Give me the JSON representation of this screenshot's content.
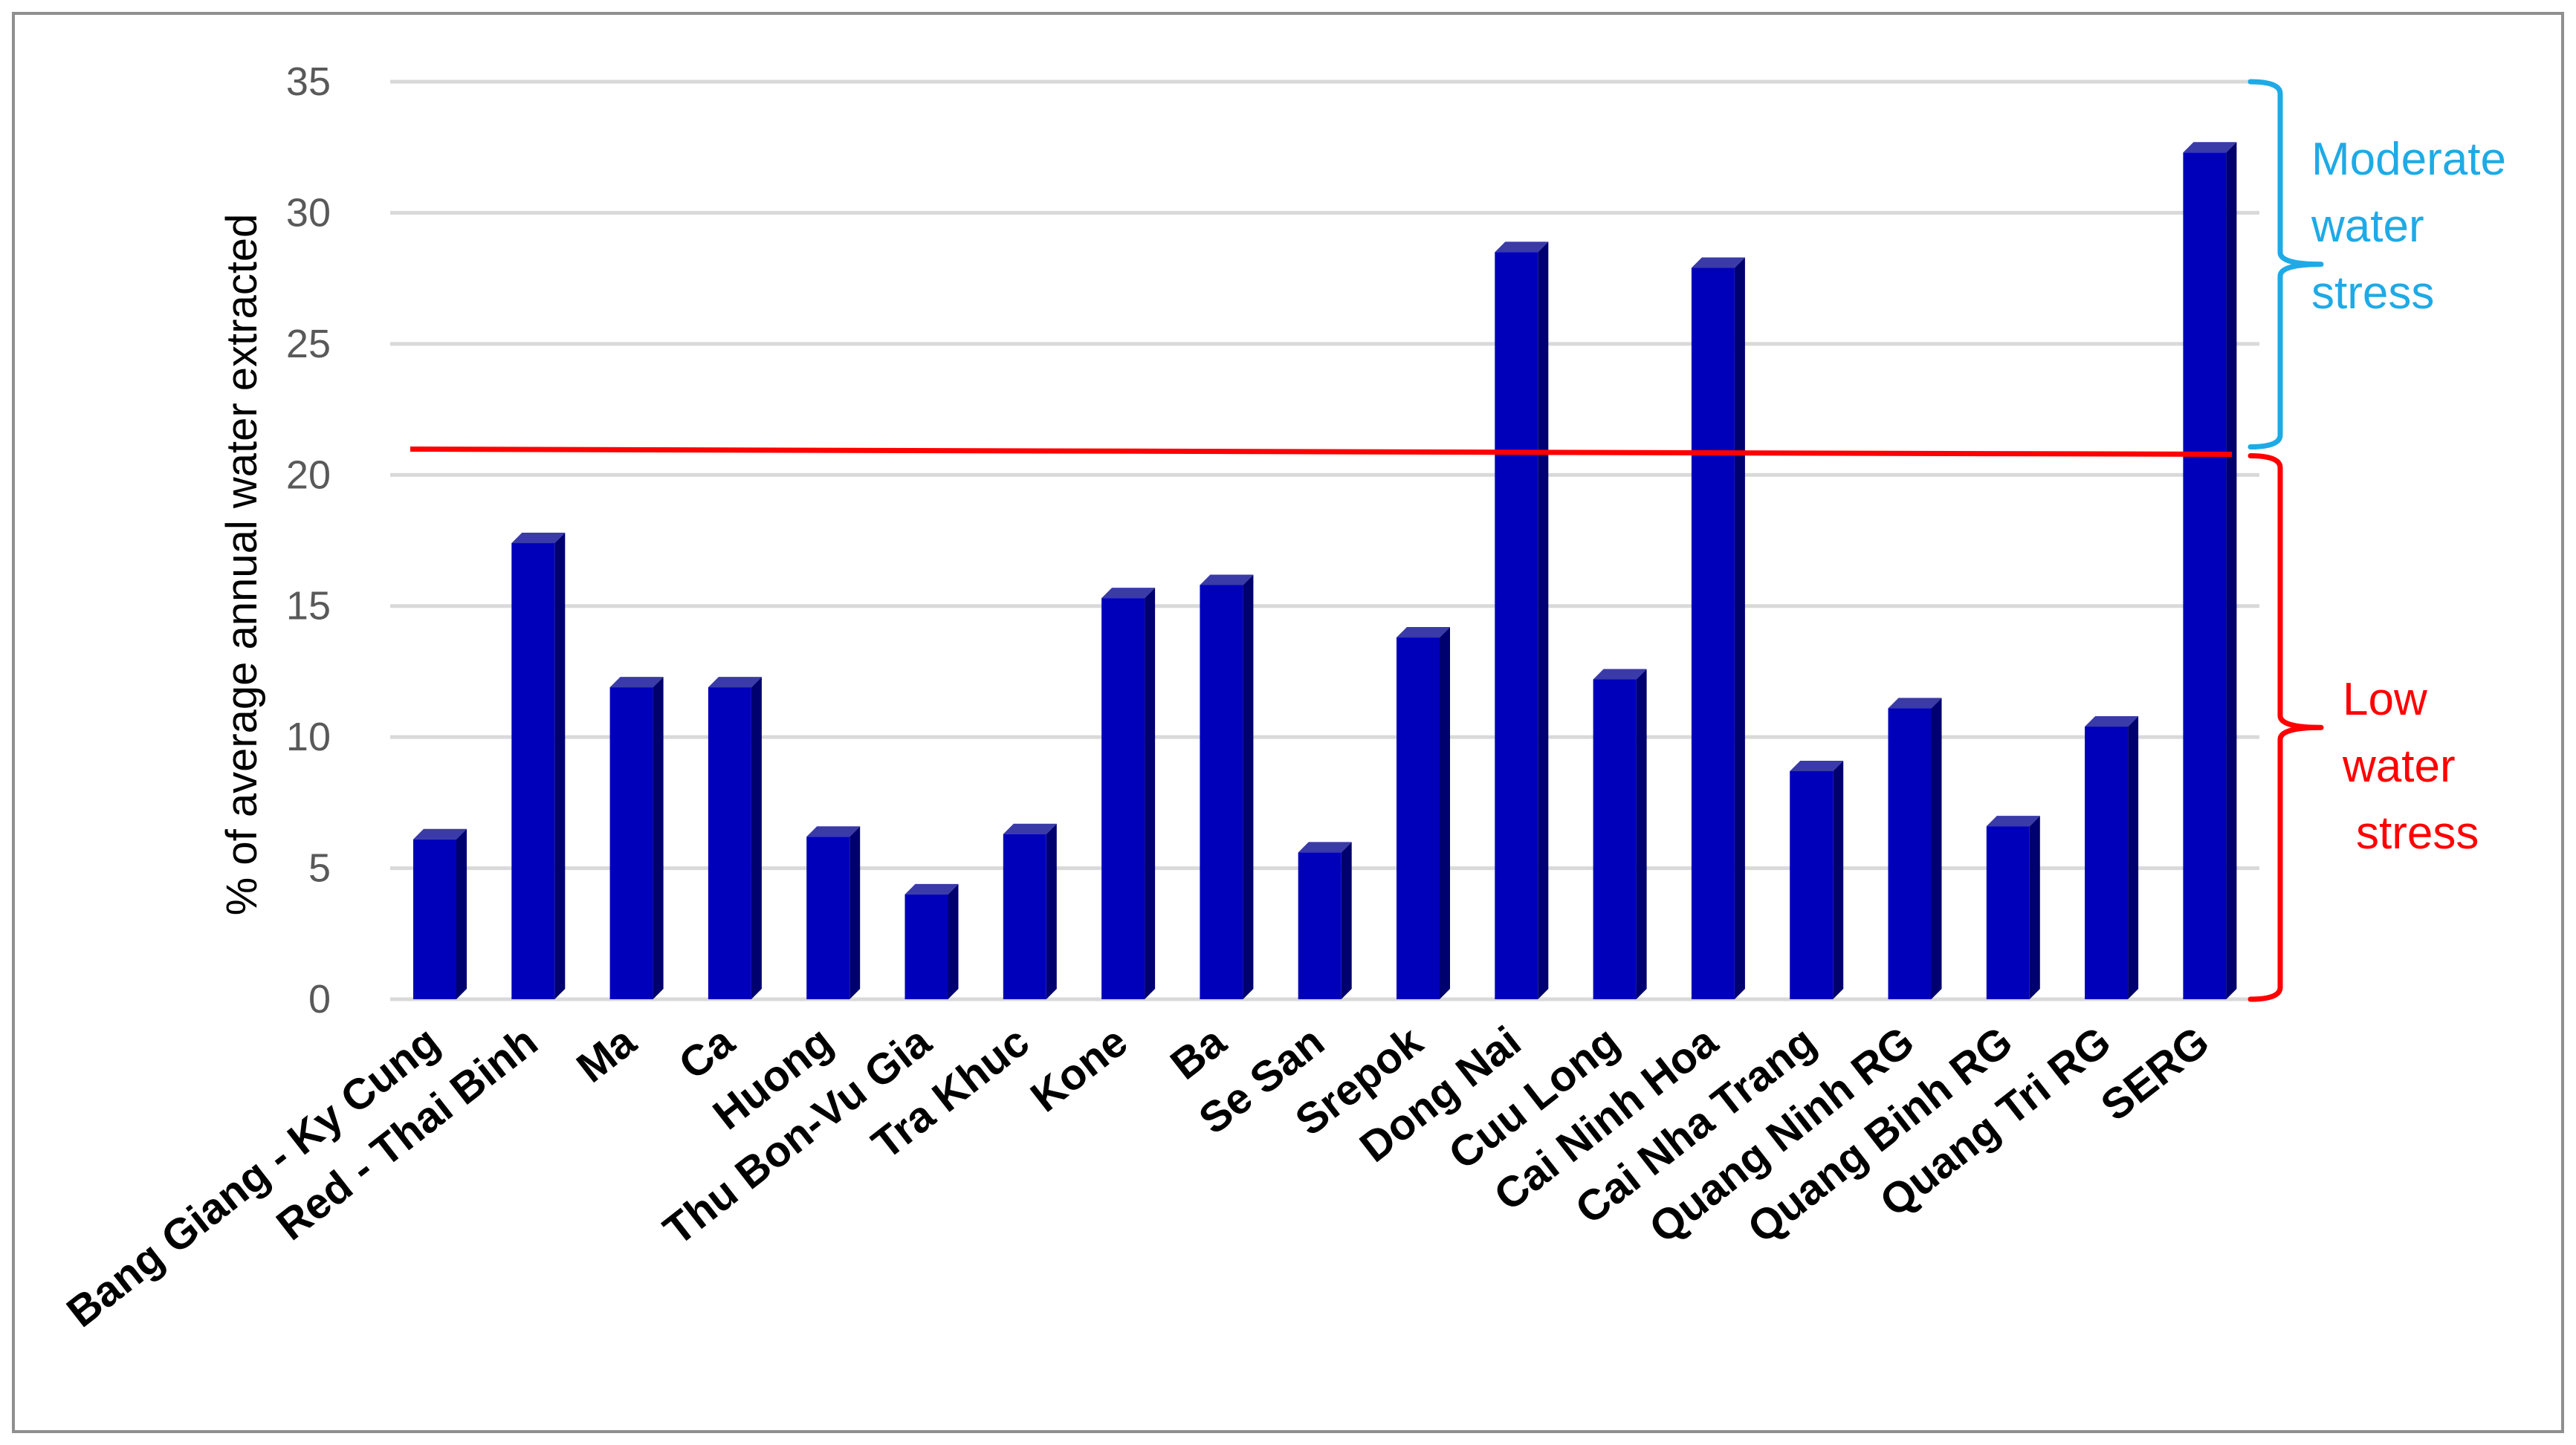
{
  "chart_data": {
    "type": "bar",
    "title": "",
    "xlabel": "",
    "ylabel": "% of average annual water extracted",
    "ylim": [
      0,
      35
    ],
    "yticks": [
      0,
      5,
      10,
      15,
      20,
      25,
      30,
      35
    ],
    "grid": true,
    "legend": "none",
    "bar_style": "3d",
    "categories": [
      "Bang Giang - Ky Cung",
      "Red - Thai Binh",
      "Ma",
      "Ca",
      "Huong",
      "Thu Bon-Vu Gia",
      "Tra Khuc",
      "Kone",
      "Ba",
      "Se San",
      "Srepok",
      "Dong Nai",
      "Cuu Long",
      "Cai Ninh Hoa",
      "Cai Nha Trang",
      "Quang Ninh RG",
      "Quang Binh RG",
      "Quang Tri RG",
      "SERG"
    ],
    "values": [
      6.1,
      17.4,
      11.9,
      11.9,
      6.2,
      4.0,
      6.3,
      15.3,
      15.8,
      5.6,
      13.8,
      28.5,
      12.2,
      27.9,
      8.7,
      11.1,
      6.6,
      10.4,
      32.3
    ],
    "threshold": {
      "value": 20.9,
      "color": "#ff0000"
    },
    "annotations": [
      {
        "id": "moderate",
        "lines": [
          "Moderate",
          "water",
          "stress"
        ],
        "range": [
          20.9,
          35
        ],
        "color": "#1eaae6"
      },
      {
        "id": "low",
        "lines": [
          "Low",
          "water",
          "stress"
        ],
        "range": [
          0,
          20.9
        ],
        "color": "#ff0000"
      }
    ],
    "colors": {
      "bar_front": "#0000bb",
      "bar_side": "#00006e",
      "bar_top": "#3a3aa8",
      "grid": "#d9d9d9",
      "tick_text": "#595959"
    }
  }
}
